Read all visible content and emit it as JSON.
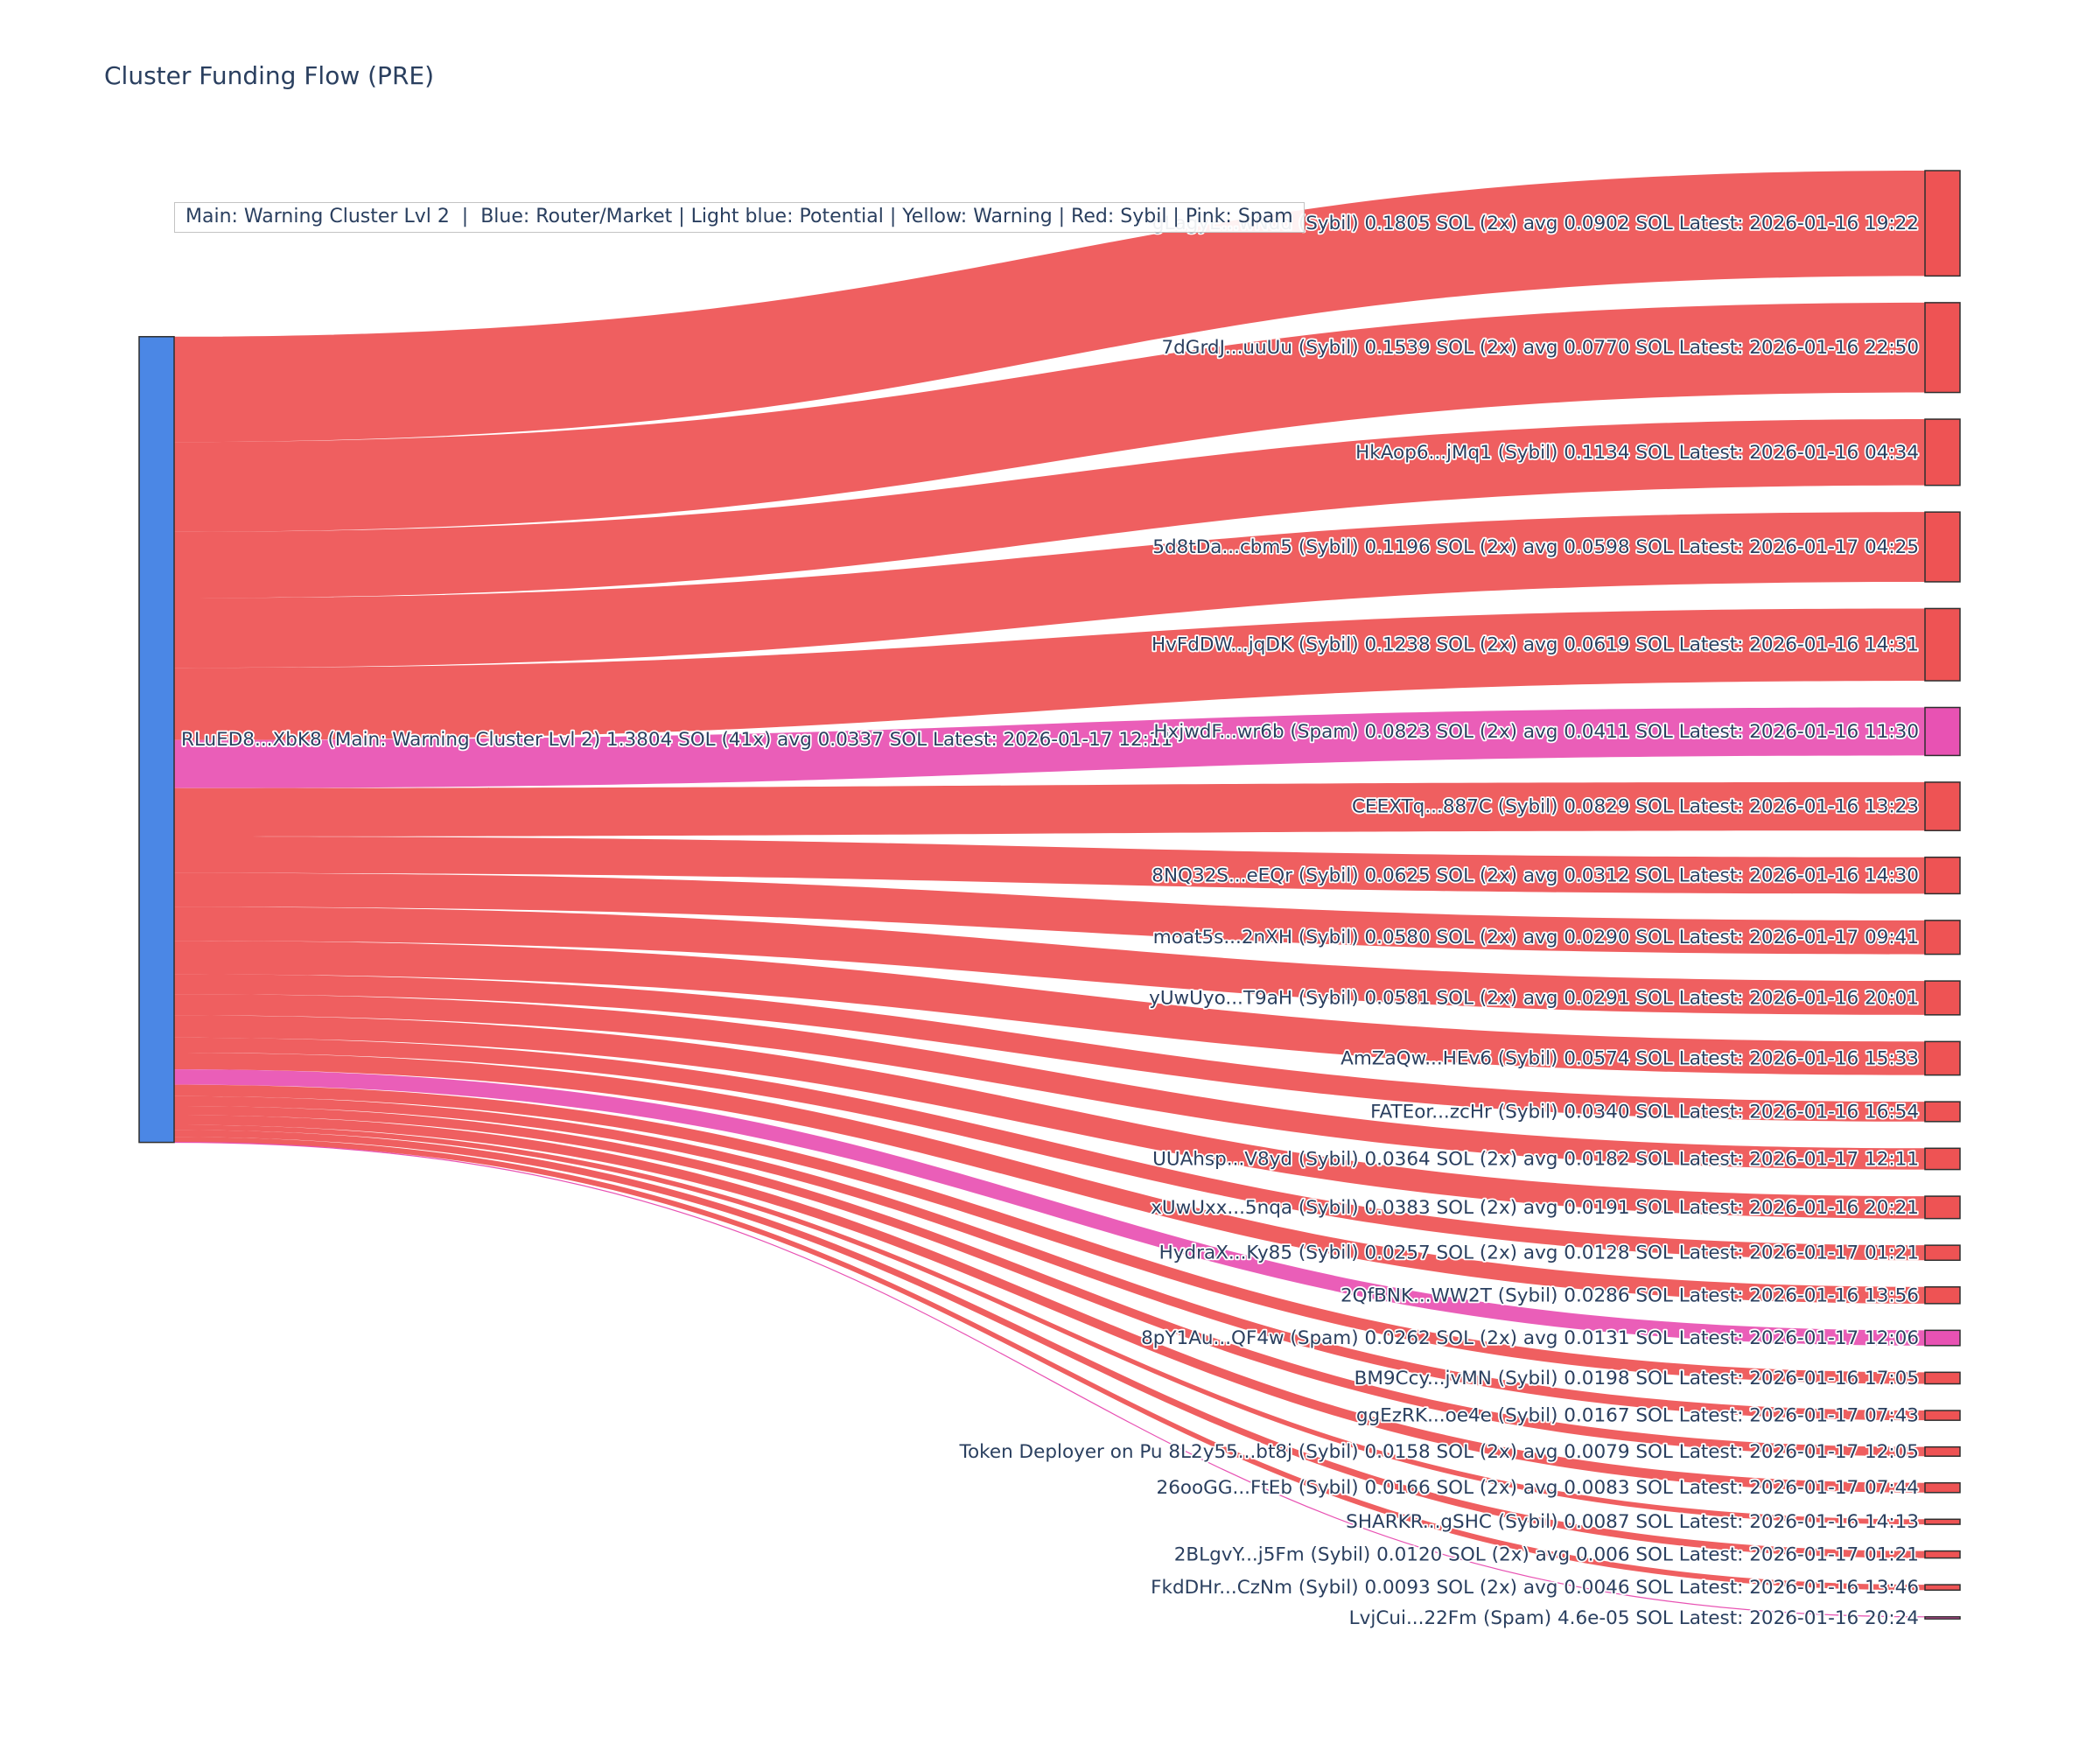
{
  "title": "Cluster Funding Flow (PRE)",
  "legend_text": "Main: Warning Cluster Lvl 2  |  Blue: Router/Market | Light blue: Potential | Yellow: Warning | Red: Sybil | Pink: Spam",
  "colors": {
    "main": "#4b87e5",
    "sybil": "#ee5354",
    "spam": "#e852b3",
    "node_border": "#2f2f2f",
    "label_text": "#2a3f5f"
  },
  "chart_data": {
    "type": "sankey",
    "title": "Cluster Funding Flow (PRE)",
    "source": {
      "label": "RLuED8...XbK8 (Main: Warning Cluster Lvl 2) 1.3804 SOL (41x) avg 0.0337 SOL Latest: 2026-01-17 12:11",
      "total_sol": 1.3804,
      "type": "main"
    },
    "flows": [
      {
        "label": "gLagyE...wNdd (Sybil) 0.1805 SOL (2x) avg 0.0902 SOL Latest: 2026-01-16 19:22",
        "value": 0.1805,
        "type": "sybil"
      },
      {
        "label": "7dGrdJ...uuUu (Sybil) 0.1539 SOL (2x) avg 0.0770 SOL Latest: 2026-01-16 22:50",
        "value": 0.1539,
        "type": "sybil"
      },
      {
        "label": "HkAop6...jMq1 (Sybil) 0.1134 SOL Latest: 2026-01-16 04:34",
        "value": 0.1134,
        "type": "sybil"
      },
      {
        "label": "5d8tDa...cbm5 (Sybil) 0.1196 SOL (2x) avg 0.0598 SOL Latest: 2026-01-17 04:25",
        "value": 0.1196,
        "type": "sybil"
      },
      {
        "label": "HvFdDW...jqDK (Sybil) 0.1238 SOL (2x) avg 0.0619 SOL Latest: 2026-01-16 14:31",
        "value": 0.1238,
        "type": "sybil"
      },
      {
        "label": "HxjwdF...wr6b (Spam) 0.0823 SOL (2x) avg 0.0411 SOL Latest: 2026-01-16 11:30",
        "value": 0.0823,
        "type": "spam"
      },
      {
        "label": "CEEXTq...887C (Sybil) 0.0829 SOL Latest: 2026-01-16 13:23",
        "value": 0.0829,
        "type": "sybil"
      },
      {
        "label": "8NQ32S...eEQr (Sybil) 0.0625 SOL (2x) avg 0.0312 SOL Latest: 2026-01-16 14:30",
        "value": 0.0625,
        "type": "sybil"
      },
      {
        "label": "moat5s...2nXH (Sybil) 0.0580 SOL (2x) avg 0.0290 SOL Latest: 2026-01-17 09:41",
        "value": 0.058,
        "type": "sybil"
      },
      {
        "label": "yUwUyo...T9aH (Sybil) 0.0581 SOL (2x) avg 0.0291 SOL Latest: 2026-01-16 20:01",
        "value": 0.0581,
        "type": "sybil"
      },
      {
        "label": "AmZaQw...HEv6 (Sybil) 0.0574 SOL Latest: 2026-01-16 15:33",
        "value": 0.0574,
        "type": "sybil"
      },
      {
        "label": "FATEor...zcHr (Sybil) 0.0340 SOL Latest: 2026-01-16 16:54",
        "value": 0.034,
        "type": "sybil"
      },
      {
        "label": "UUAhsp...V8yd (Sybil) 0.0364 SOL (2x) avg 0.0182 SOL Latest: 2026-01-17 12:11",
        "value": 0.0364,
        "type": "sybil"
      },
      {
        "label": "xUwUxx...5nqa (Sybil) 0.0383 SOL (2x) avg 0.0191 SOL Latest: 2026-01-16 20:21",
        "value": 0.0383,
        "type": "sybil"
      },
      {
        "label": "HydraX...Ky85 (Sybil) 0.0257 SOL (2x) avg 0.0128 SOL Latest: 2026-01-17 01:21",
        "value": 0.0257,
        "type": "sybil"
      },
      {
        "label": "2QfBNK...WW2T (Sybil) 0.0286 SOL Latest: 2026-01-16 13:56",
        "value": 0.0286,
        "type": "sybil"
      },
      {
        "label": "8pY1Au...QF4w (Spam) 0.0262 SOL (2x) avg 0.0131 SOL Latest: 2026-01-17 12:06",
        "value": 0.0262,
        "type": "spam"
      },
      {
        "label": "BM9Ccy...jvMN (Sybil) 0.0198 SOL Latest: 2026-01-16 17:05",
        "value": 0.0198,
        "type": "sybil"
      },
      {
        "label": "ggEzRK...oe4e (Sybil) 0.0167 SOL Latest: 2026-01-17 07:43",
        "value": 0.0167,
        "type": "sybil"
      },
      {
        "label": "Token Deployer on Pu 8L2y55...bt8j (Sybil) 0.0158 SOL (2x) avg 0.0079 SOL Latest: 2026-01-17 12:05",
        "value": 0.0158,
        "type": "sybil"
      },
      {
        "label": "26ooGG...FtEb (Sybil) 0.0166 SOL (2x) avg 0.0083 SOL Latest: 2026-01-17 07:44",
        "value": 0.0166,
        "type": "sybil"
      },
      {
        "label": "SHARKR...gSHC (Sybil) 0.0087 SOL Latest: 2026-01-16 14:13",
        "value": 0.0087,
        "type": "sybil"
      },
      {
        "label": "2BLgvY...j5Fm (Sybil) 0.0120 SOL (2x) avg 0.006 SOL Latest: 2026-01-17 01:21",
        "value": 0.012,
        "type": "sybil"
      },
      {
        "label": "FkdDHr...CzNm (Sybil) 0.0093 SOL (2x) avg 0.0046 SOL Latest: 2026-01-16 13:46",
        "value": 0.0093,
        "type": "sybil"
      },
      {
        "label": "LvjCui...22Fm (Spam) 4.6e-05 SOL Latest: 2026-01-16 20:24",
        "value": 4.6e-05,
        "type": "spam"
      }
    ]
  }
}
